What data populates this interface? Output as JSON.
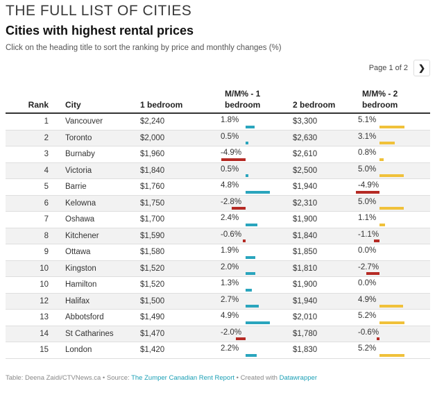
{
  "header": {
    "title": "THE FULL LIST OF CITIES",
    "subtitle": "Cities with highest rental prices",
    "description": "Click on the heading title to sort the ranking by price and monthly changes (%)"
  },
  "pagination": {
    "label": "Page 1 of 2",
    "next_icon": "chevron-right-icon"
  },
  "table": {
    "columns": {
      "rank": "Rank",
      "city": "City",
      "one_bedroom": "1 bedroom",
      "mm_one_line1": "M/M% - 1",
      "mm_one_line2": "bedroom",
      "two_bedroom": "2 bedroom",
      "mm_two_line1": "M/M% - 2",
      "mm_two_line2": "bedroom"
    },
    "rows": [
      {
        "rank": "1",
        "city": "Vancouver",
        "one_bedroom": "$2,240",
        "mm1": "1.8%",
        "mm1_value": 1.8,
        "two_bedroom": "$3,300",
        "mm2": "5.1%",
        "mm2_value": 5.1
      },
      {
        "rank": "2",
        "city": "Toronto",
        "one_bedroom": "$2,000",
        "mm1": "0.5%",
        "mm1_value": 0.5,
        "two_bedroom": "$2,630",
        "mm2": "3.1%",
        "mm2_value": 3.1
      },
      {
        "rank": "3",
        "city": "Burnaby",
        "one_bedroom": "$1,960",
        "mm1": "-4.9%",
        "mm1_value": -4.9,
        "two_bedroom": "$2,610",
        "mm2": "0.8%",
        "mm2_value": 0.8
      },
      {
        "rank": "4",
        "city": "Victoria",
        "one_bedroom": "$1,840",
        "mm1": "0.5%",
        "mm1_value": 0.5,
        "two_bedroom": "$2,500",
        "mm2": "5.0%",
        "mm2_value": 5.0
      },
      {
        "rank": "5",
        "city": "Barrie",
        "one_bedroom": "$1,760",
        "mm1": "4.8%",
        "mm1_value": 4.8,
        "two_bedroom": "$1,940",
        "mm2": "-4.9%",
        "mm2_value": -4.9
      },
      {
        "rank": "6",
        "city": "Kelowna",
        "one_bedroom": "$1,750",
        "mm1": "-2.8%",
        "mm1_value": -2.8,
        "two_bedroom": "$2,310",
        "mm2": "5.0%",
        "mm2_value": 5.0
      },
      {
        "rank": "7",
        "city": "Oshawa",
        "one_bedroom": "$1,700",
        "mm1": "2.4%",
        "mm1_value": 2.4,
        "two_bedroom": "$1,900",
        "mm2": "1.1%",
        "mm2_value": 1.1
      },
      {
        "rank": "8",
        "city": "Kitchener",
        "one_bedroom": "$1,590",
        "mm1": "-0.6%",
        "mm1_value": -0.6,
        "two_bedroom": "$1,840",
        "mm2": "-1.1%",
        "mm2_value": -1.1
      },
      {
        "rank": "9",
        "city": "Ottawa",
        "one_bedroom": "$1,580",
        "mm1": "1.9%",
        "mm1_value": 1.9,
        "two_bedroom": "$1,850",
        "mm2": "0.0%",
        "mm2_value": 0.0
      },
      {
        "rank": "10",
        "city": "Kingston",
        "one_bedroom": "$1,520",
        "mm1": "2.0%",
        "mm1_value": 2.0,
        "two_bedroom": "$1,810",
        "mm2": "-2.7%",
        "mm2_value": -2.7
      },
      {
        "rank": "10",
        "city": "Hamilton",
        "one_bedroom": "$1,520",
        "mm1": "1.3%",
        "mm1_value": 1.3,
        "two_bedroom": "$1,900",
        "mm2": "0.0%",
        "mm2_value": 0.0
      },
      {
        "rank": "12",
        "city": "Halifax",
        "one_bedroom": "$1,500",
        "mm1": "2.7%",
        "mm1_value": 2.7,
        "two_bedroom": "$1,940",
        "mm2": "4.9%",
        "mm2_value": 4.9
      },
      {
        "rank": "13",
        "city": "Abbotsford",
        "one_bedroom": "$1,490",
        "mm1": "4.9%",
        "mm1_value": 4.9,
        "two_bedroom": "$2,010",
        "mm2": "5.2%",
        "mm2_value": 5.2
      },
      {
        "rank": "14",
        "city": "St Catharines",
        "one_bedroom": "$1,470",
        "mm1": "-2.0%",
        "mm1_value": -2.0,
        "two_bedroom": "$1,780",
        "mm2": "-0.6%",
        "mm2_value": -0.6
      },
      {
        "rank": "15",
        "city": "London",
        "one_bedroom": "$1,420",
        "mm1": "2.2%",
        "mm1_value": 2.2,
        "two_bedroom": "$1,830",
        "mm2": "5.2%",
        "mm2_value": 5.2
      }
    ]
  },
  "colors": {
    "mm1_positive": "#2aa5bd",
    "mm2_positive": "#f0c13a",
    "negative": "#b52a24"
  },
  "footer": {
    "prefix": "Table: Deena Zaidi/CTVNews.ca • Source: ",
    "source_link": "The Zumper Canadian Rent Report",
    "created": " • Created with ",
    "tool_link": "Datawrapper"
  }
}
